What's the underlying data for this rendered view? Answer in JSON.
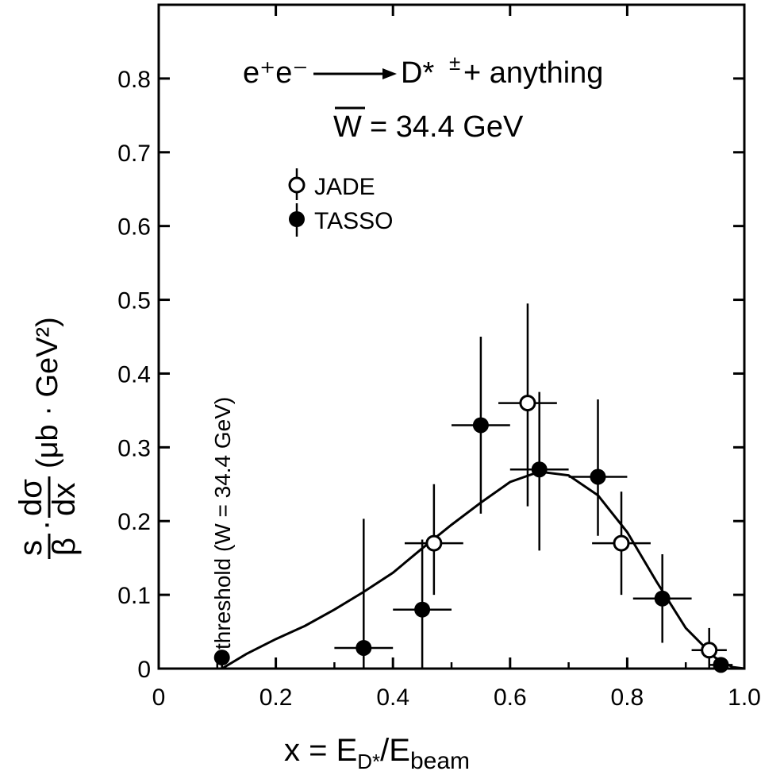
{
  "chart_data": {
    "type": "scatter",
    "title_line1": {
      "reaction": "e⁺e⁻",
      "product": "D*",
      "charge": "±",
      "rest": "+ anything"
    },
    "title_line2": {
      "symbol": "W",
      "rest": "= 34.4 GeV"
    },
    "xlabel": {
      "prefix": "x = E",
      "sub1": "D*",
      "mid": "/E",
      "sub2": "beam"
    },
    "ylabel": {
      "numerator": "s",
      "denominator": "β",
      "dot": "·",
      "d_num": "dσ",
      "d_den": "dx",
      "units": "(μb · GeV²)"
    },
    "xlim": [
      0,
      1.0
    ],
    "ylim": [
      0,
      0.9
    ],
    "xticks": [
      {
        "value": 0,
        "label": "0"
      },
      {
        "value": 0.2,
        "label": "0.2"
      },
      {
        "value": 0.4,
        "label": "0.4"
      },
      {
        "value": 0.6,
        "label": "0.6"
      },
      {
        "value": 0.8,
        "label": "0.8"
      },
      {
        "value": 1.0,
        "label": "1.0"
      }
    ],
    "yticks": [
      {
        "value": 0,
        "label": "0"
      },
      {
        "value": 0.1,
        "label": "0.1"
      },
      {
        "value": 0.2,
        "label": "0.2"
      },
      {
        "value": 0.3,
        "label": "0.3"
      },
      {
        "value": 0.4,
        "label": "0.4"
      },
      {
        "value": 0.5,
        "label": "0.5"
      },
      {
        "value": 0.6,
        "label": "0.6"
      },
      {
        "value": 0.7,
        "label": "0.7"
      },
      {
        "value": 0.8,
        "label": "0.8"
      }
    ],
    "grid": false,
    "legend_position": "top-left",
    "threshold": {
      "x": 0.108,
      "label": "threshold (W = 34.4 GeV)"
    },
    "series": [
      {
        "name": "JADE",
        "marker": "open-circle",
        "points": [
          {
            "x": 0.47,
            "y": 0.17,
            "xerr": 0.05,
            "yerr_low": 0.07,
            "yerr_high": 0.08
          },
          {
            "x": 0.63,
            "y": 0.36,
            "xerr": 0.05,
            "yerr_low": 0.14,
            "yerr_high": 0.135
          },
          {
            "x": 0.79,
            "y": 0.17,
            "xerr": 0.05,
            "yerr_low": 0.07,
            "yerr_high": 0.07
          },
          {
            "x": 0.94,
            "y": 0.025,
            "xerr": 0.03,
            "yerr_low": 0.025,
            "yerr_high": 0.03
          }
        ]
      },
      {
        "name": "TASSO",
        "marker": "filled-circle",
        "points": [
          {
            "x": 0.108,
            "y": 0.015,
            "xerr": 0,
            "yerr_low": 0.015,
            "yerr_high": 0.01
          },
          {
            "x": 0.35,
            "y": 0.028,
            "xerr": 0.05,
            "yerr_low": 0.028,
            "yerr_high": 0.175
          },
          {
            "x": 0.45,
            "y": 0.08,
            "xerr": 0.05,
            "yerr_low": 0.08,
            "yerr_high": 0.095
          },
          {
            "x": 0.55,
            "y": 0.33,
            "xerr": 0.05,
            "yerr_low": 0.12,
            "yerr_high": 0.12
          },
          {
            "x": 0.65,
            "y": 0.27,
            "xerr": 0.05,
            "yerr_low": 0.11,
            "yerr_high": 0.105
          },
          {
            "x": 0.75,
            "y": 0.26,
            "xerr": 0.05,
            "yerr_low": 0.08,
            "yerr_high": 0.105
          },
          {
            "x": 0.86,
            "y": 0.095,
            "xerr": 0.05,
            "yerr_low": 0.06,
            "yerr_high": 0.06
          },
          {
            "x": 0.96,
            "y": 0.005,
            "xerr": 0.02,
            "yerr_low": 0.005,
            "yerr_high": 0.01
          }
        ]
      }
    ],
    "fit_curve": [
      [
        0.108,
        0.0
      ],
      [
        0.15,
        0.02
      ],
      [
        0.2,
        0.04
      ],
      [
        0.25,
        0.058
      ],
      [
        0.3,
        0.08
      ],
      [
        0.35,
        0.104
      ],
      [
        0.4,
        0.13
      ],
      [
        0.45,
        0.163
      ],
      [
        0.5,
        0.195
      ],
      [
        0.55,
        0.225
      ],
      [
        0.6,
        0.253
      ],
      [
        0.65,
        0.267
      ],
      [
        0.7,
        0.262
      ],
      [
        0.75,
        0.235
      ],
      [
        0.8,
        0.185
      ],
      [
        0.85,
        0.118
      ],
      [
        0.9,
        0.055
      ],
      [
        0.95,
        0.015
      ],
      [
        0.98,
        0.002
      ],
      [
        1.0,
        0.0
      ]
    ]
  }
}
